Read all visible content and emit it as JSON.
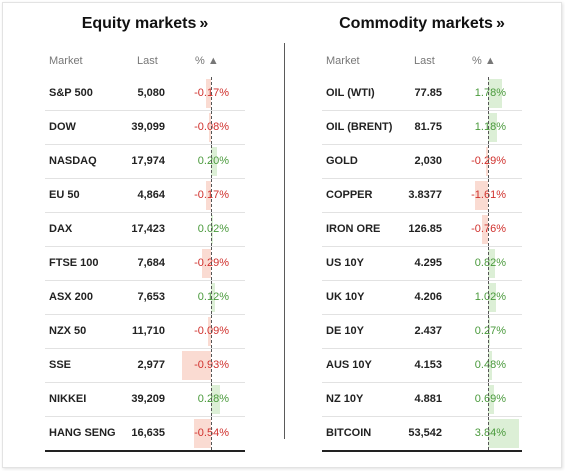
{
  "equity": {
    "title": "Equity markets",
    "link_glyph": "»",
    "headers": {
      "market": "Market",
      "last": "Last",
      "pct": "% ▲"
    },
    "rows": [
      {
        "name": "S&P 500",
        "last": "5,080",
        "change": "-0.17%",
        "value": -0.17
      },
      {
        "name": "DOW",
        "last": "39,099",
        "change": "-0.08%",
        "value": -0.08
      },
      {
        "name": "NASDAQ",
        "last": "17,974",
        "change": "0.20%",
        "value": 0.2
      },
      {
        "name": "EU 50",
        "last": "4,864",
        "change": "-0.17%",
        "value": -0.17
      },
      {
        "name": "DAX",
        "last": "17,423",
        "change": "0.02%",
        "value": 0.02
      },
      {
        "name": "FTSE 100",
        "last": "7,684",
        "change": "-0.29%",
        "value": -0.29
      },
      {
        "name": "ASX 200",
        "last": "7,653",
        "change": "0.12%",
        "value": 0.12
      },
      {
        "name": "NZX 50",
        "last": "11,710",
        "change": "-0.09%",
        "value": -0.09
      },
      {
        "name": "SSE",
        "last": "2,977",
        "change": "-0.93%",
        "value": -0.93
      },
      {
        "name": "NIKKEI",
        "last": "39,209",
        "change": "0.28%",
        "value": 0.28
      },
      {
        "name": "HANG SENG",
        "last": "16,635",
        "change": "-0.54%",
        "value": -0.54
      }
    ]
  },
  "commodity": {
    "title": "Commodity markets",
    "link_glyph": "»",
    "headers": {
      "market": "Market",
      "last": "Last",
      "pct": "% ▲"
    },
    "rows": [
      {
        "name": "OIL (WTI)",
        "last": "77.85",
        "change": "1.78%",
        "value": 1.78
      },
      {
        "name": "OIL (BRENT)",
        "last": "81.75",
        "change": "1.18%",
        "value": 1.18
      },
      {
        "name": "GOLD",
        "last": "2,030",
        "change": "-0.29%",
        "value": -0.29
      },
      {
        "name": "COPPER",
        "last": "3.8377",
        "change": "-1.61%",
        "value": -1.61
      },
      {
        "name": "IRON ORE",
        "last": "126.85",
        "change": "-0.76%",
        "value": -0.76
      },
      {
        "name": "US 10Y",
        "last": "4.295",
        "change": "0.82%",
        "value": 0.82
      },
      {
        "name": "UK 10Y",
        "last": "4.206",
        "change": "1.02%",
        "value": 1.02
      },
      {
        "name": "DE 10Y",
        "last": "2.437",
        "change": "0.27%",
        "value": 0.27
      },
      {
        "name": "AUS 10Y",
        "last": "4.153",
        "change": "0.48%",
        "value": 0.48
      },
      {
        "name": "NZ 10Y",
        "last": "4.881",
        "change": "0.69%",
        "value": 0.69
      },
      {
        "name": "BITCOIN",
        "last": "53,542",
        "change": "3.84%",
        "value": 3.84
      }
    ]
  },
  "colors": {
    "positive_text": "#4a9a3c",
    "negative_text": "#d0312d",
    "positive_bar": "#dcefd6",
    "negative_bar": "#fadbd2"
  }
}
